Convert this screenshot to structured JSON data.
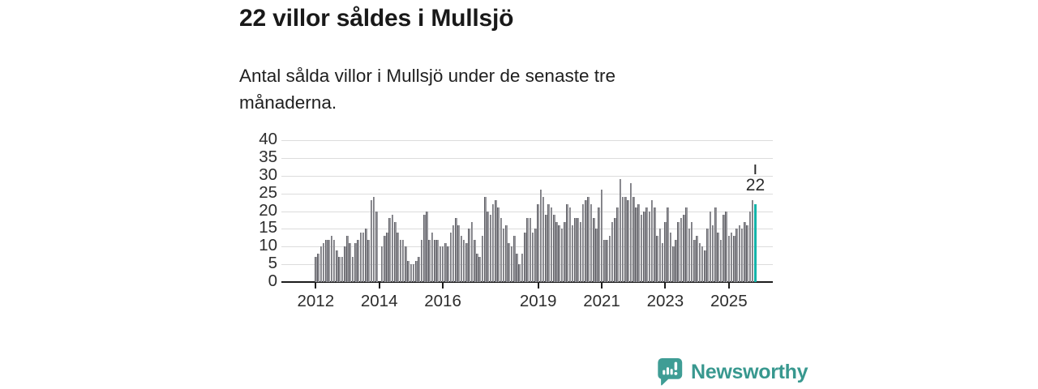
{
  "header": {
    "title": "22 villor såldes i Mullsjö",
    "subtitle": "Antal sålda villor i Mullsjö under de senaste tre månaderna."
  },
  "chart_data": {
    "type": "bar",
    "title": "22 villor såldes i Mullsjö",
    "xlabel": "",
    "ylabel": "",
    "ylim": [
      0,
      40
    ],
    "yticks": [
      0,
      5,
      10,
      15,
      20,
      25,
      30,
      35,
      40
    ],
    "grid": true,
    "legend": "none",
    "xticks": [
      {
        "label": "2012",
        "index": 0
      },
      {
        "label": "2014",
        "index": 24
      },
      {
        "label": "2016",
        "index": 48
      },
      {
        "label": "2019",
        "index": 84
      },
      {
        "label": "2021",
        "index": 108
      },
      {
        "label": "2023",
        "index": 132
      },
      {
        "label": "2025",
        "index": 156
      }
    ],
    "values": [
      7,
      8,
      10,
      11,
      12,
      12,
      13,
      12,
      9,
      7,
      7,
      10,
      13,
      11,
      7,
      11,
      12,
      14,
      14,
      15,
      12,
      23,
      24,
      20,
      0,
      10,
      13,
      14,
      18,
      19,
      17,
      14,
      12,
      12,
      10,
      6,
      5,
      5,
      6,
      7,
      12,
      19,
      20,
      12,
      14,
      12,
      12,
      10,
      10,
      11,
      10,
      14,
      16,
      18,
      16,
      13,
      12,
      11,
      15,
      17,
      12,
      8,
      7,
      13,
      24,
      20,
      19,
      22,
      23,
      21,
      18,
      15,
      16,
      11,
      10,
      13,
      8,
      5,
      8,
      14,
      18,
      18,
      14,
      15,
      22,
      26,
      24,
      19,
      22,
      21,
      19,
      17,
      16,
      15,
      17,
      22,
      21,
      16,
      18,
      18,
      17,
      22,
      23,
      24,
      22,
      18,
      15,
      21,
      26,
      12,
      12,
      13,
      17,
      18,
      21,
      29,
      24,
      24,
      23,
      28,
      24,
      21,
      22,
      19,
      20,
      21,
      20,
      23,
      21,
      13,
      15,
      11,
      17,
      21,
      14,
      10,
      12,
      17,
      18,
      19,
      21,
      15,
      17,
      12,
      13,
      11,
      10,
      9,
      15,
      20,
      16,
      21,
      14,
      12,
      19,
      20,
      13,
      14,
      13,
      15,
      16,
      15,
      17,
      16,
      20,
      23,
      22
    ],
    "bar_color": "#87878d",
    "bar_edge_color": "#5e5e64",
    "gridline_color": "#dcdcdc",
    "axis_color": "#1c1c1c",
    "highlight": {
      "index": 166,
      "value": 22,
      "label": "22",
      "color": "#14b3a9"
    }
  },
  "footer": {
    "brand": "Newsworthy",
    "brand_color": "#38988f",
    "logo_icon": "bar-chart-speech-bubble-icon"
  }
}
